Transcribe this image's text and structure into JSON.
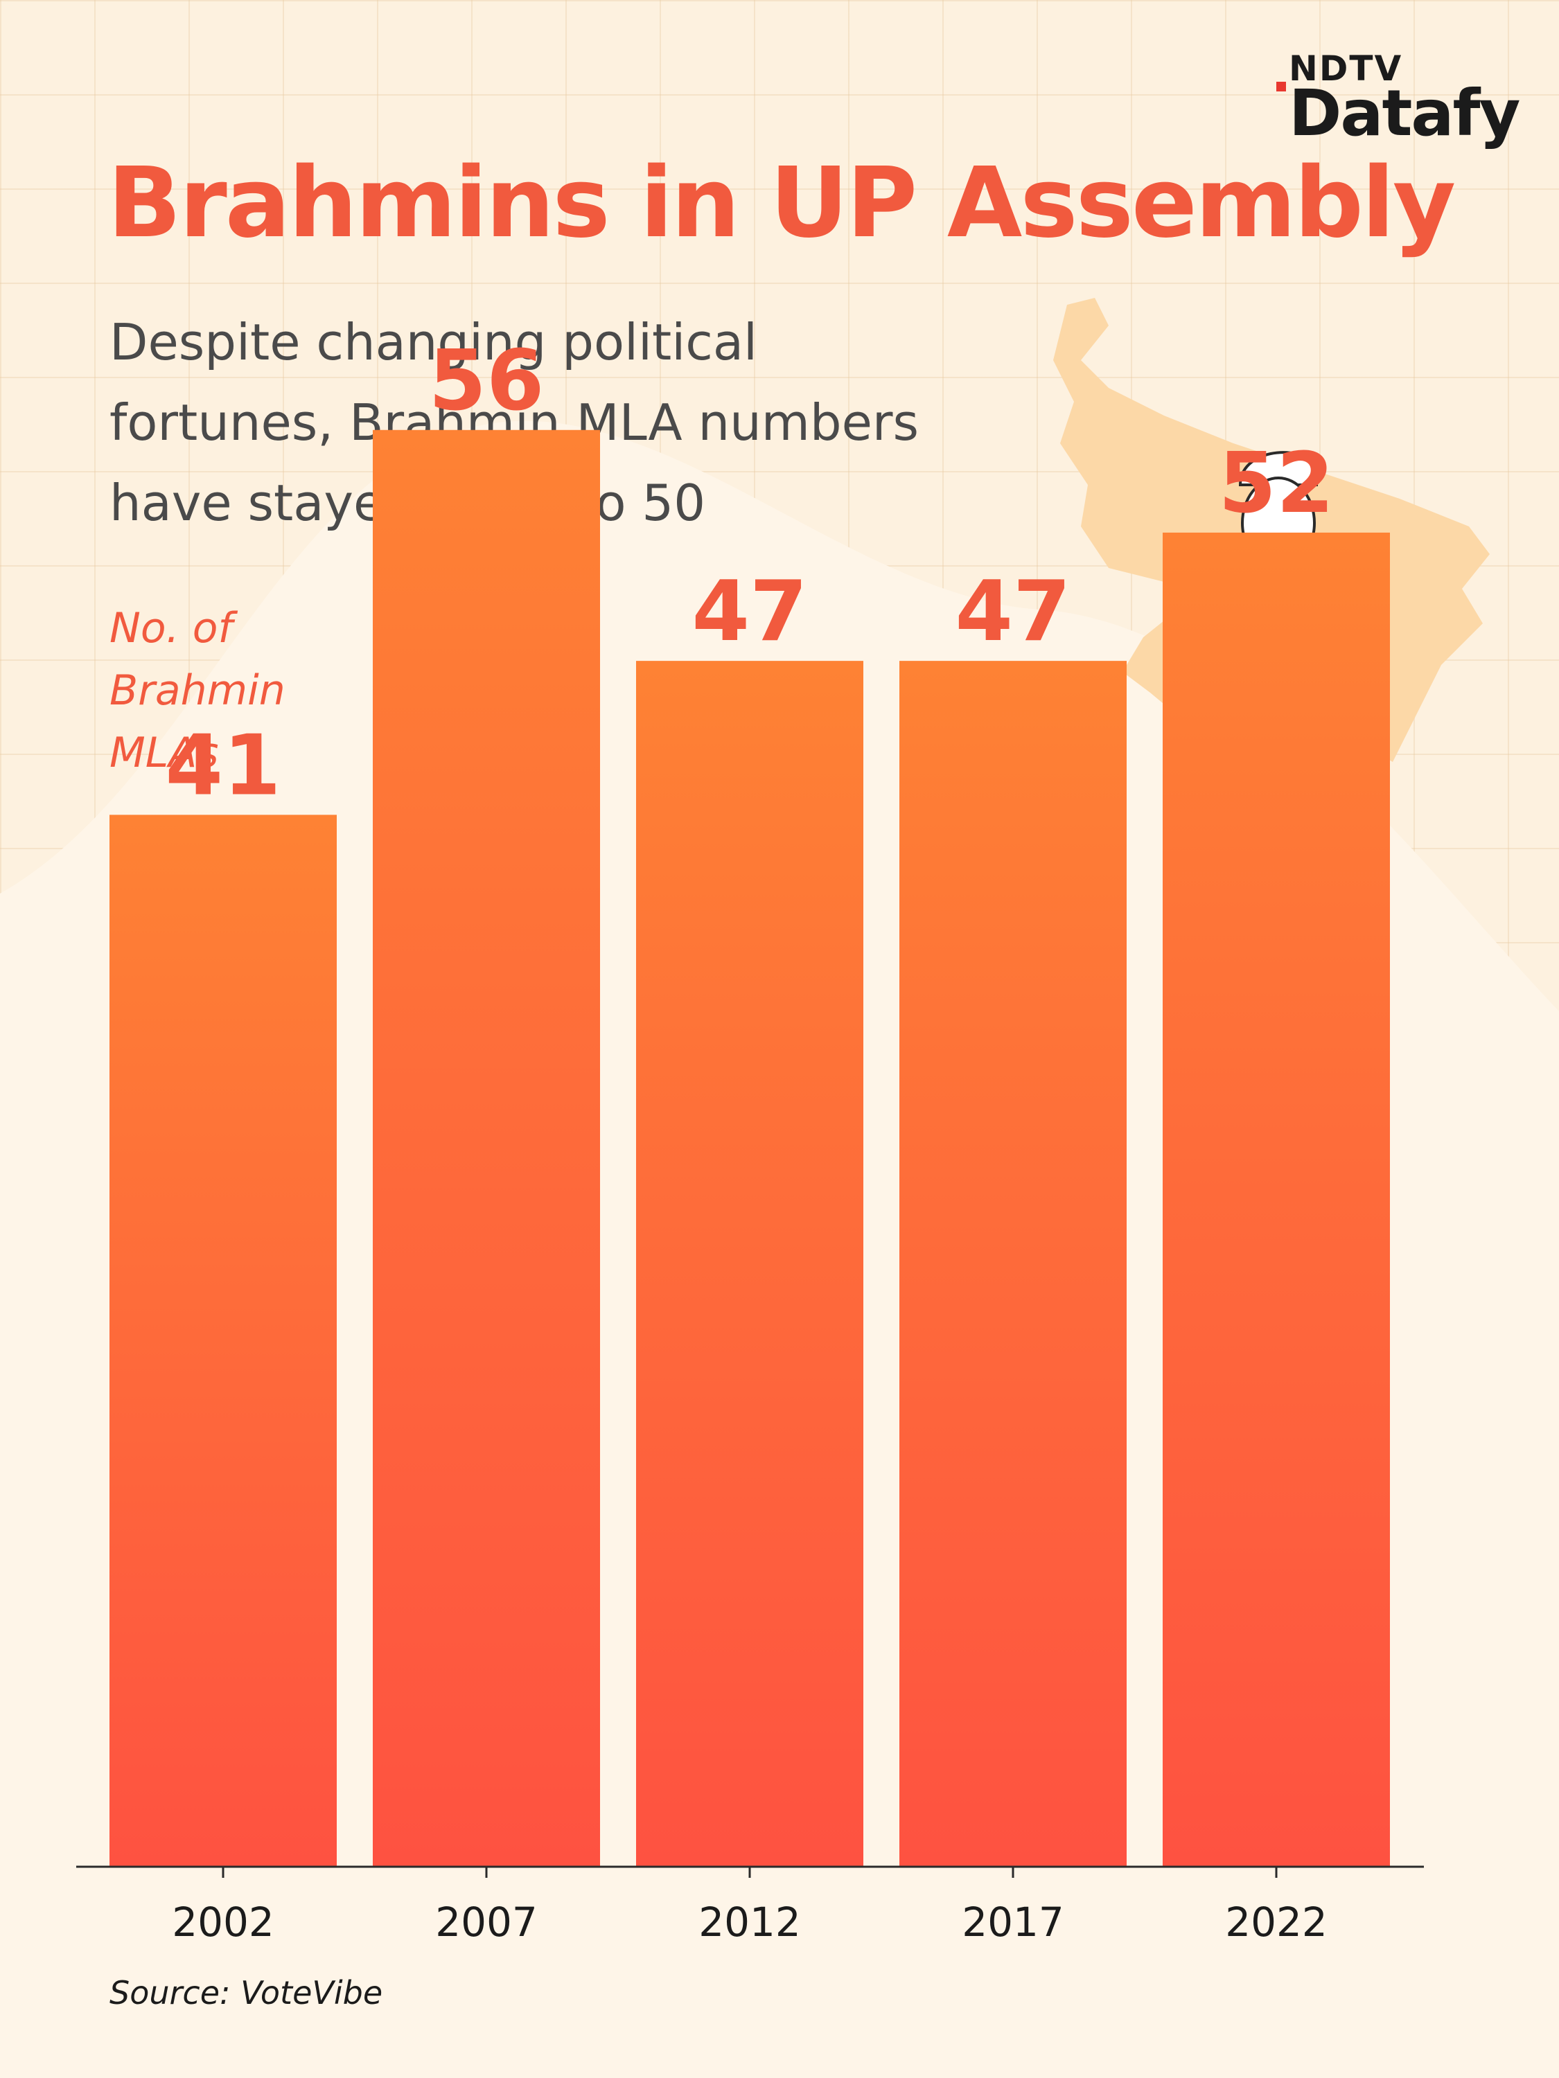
{
  "brand": {
    "top": "NDTV",
    "main": "Datafy"
  },
  "title": "Brahmins in UP Assembly",
  "subtitle": "Despite changing political\nfortunes, Brahmin MLA numbers\nhave stayed close to 50",
  "source": "Source: VoteVibe",
  "colors": {
    "accent": "#f15a3e",
    "bar_top": "#fe8234",
    "bar_bottom": "#fe5241",
    "background": "#fdf1df"
  },
  "chart_data": {
    "type": "bar",
    "title": "Brahmins in UP Assembly",
    "ylabel": "No. of\nBrahmin\nMLAs",
    "xlabel": "",
    "categories": [
      "2002",
      "2007",
      "2012",
      "2017",
      "2022"
    ],
    "values": [
      41,
      56,
      47,
      47,
      52
    ],
    "ylim": [
      0,
      72
    ],
    "grid": false,
    "legend": "none",
    "data_labels": true
  }
}
